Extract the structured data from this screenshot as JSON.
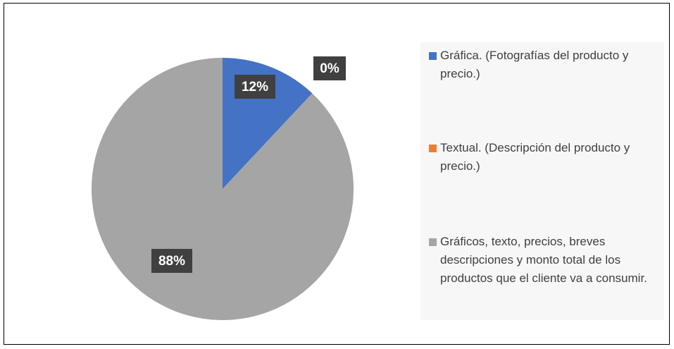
{
  "chart_data": {
    "type": "pie",
    "categories": [
      "Gráfica. (Fotografías del producto y precio.)",
      "Textual. (Descripción del producto y precio.)",
      "Gráficos, texto, precios, breves descripciones y monto total de los productos que el cliente va a consumir."
    ],
    "values": [
      12,
      0,
      88
    ],
    "value_labels": [
      "12%",
      "0%",
      "88%"
    ],
    "colors": [
      "#4472c4",
      "#ed7d31",
      "#a5a5a5"
    ],
    "legend": "right"
  }
}
